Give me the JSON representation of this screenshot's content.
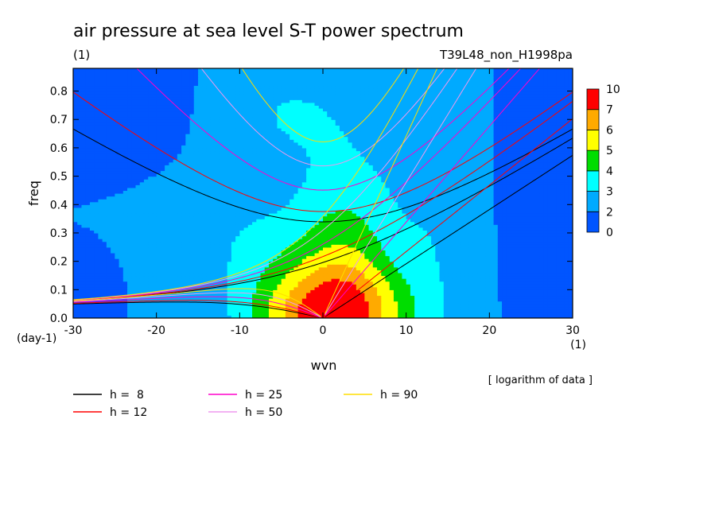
{
  "chart_data": {
    "type": "heatmap",
    "title": "air pressure at sea level S-T power spectrum",
    "title_unit": "(1)",
    "run_label": "T39L48_non_H1998pa",
    "xlabel": "wvn",
    "x_unit": "(1)",
    "ylabel": "freq",
    "y_unit": "(day-1)",
    "xlim": [
      -30,
      30
    ],
    "ylim": [
      0,
      0.88
    ],
    "x_ticks": [
      -30,
      -20,
      -10,
      0,
      10,
      20,
      30
    ],
    "y_ticks": [
      0.0,
      0.1,
      0.2,
      0.3,
      0.4,
      0.5,
      0.6,
      0.7,
      0.8
    ],
    "x_tick_labels": [
      "-30",
      "-20",
      "-10",
      "0",
      "10",
      "20",
      "30"
    ],
    "y_tick_labels": [
      "0.0",
      "0.1",
      "0.2",
      "0.3",
      "0.4",
      "0.5",
      "0.6",
      "0.7",
      "0.8"
    ],
    "note": "[ logarithm of data ]",
    "colorbar": {
      "levels": [
        0,
        2,
        3,
        4,
        5,
        6,
        7,
        10
      ],
      "level_labels": [
        "0",
        "2",
        "3",
        "4",
        "5",
        "6",
        "7",
        "10"
      ],
      "colors": [
        "#0055ff",
        "#00aaff",
        "#00ffff",
        "#00dd00",
        "#ffff00",
        "#ffaa00",
        "#ff0000"
      ]
    },
    "field": {
      "background_level": 2,
      "features": [
        {
          "x": 1,
          "y": 0.0,
          "sx": 9,
          "sy": 0.2,
          "amp": 5.6
        },
        {
          "x": 3,
          "y": 0.3,
          "sx": 6,
          "sy": 0.32,
          "amp": 1.8
        },
        {
          "x": -8,
          "y": 0.28,
          "sx": 9,
          "sy": 0.2,
          "amp": 0.9
        },
        {
          "x": 14,
          "y": 0.45,
          "sx": 5,
          "sy": 0.45,
          "amp": 0.9
        },
        {
          "x": -4,
          "y": 0.72,
          "sx": 8,
          "sy": 0.18,
          "amp": 1.0
        },
        {
          "x": -24,
          "y": 0.78,
          "sx": 6,
          "sy": 0.17,
          "amp": -0.9
        },
        {
          "x": 26,
          "y": 0.5,
          "sx": 4,
          "sy": 0.45,
          "amp": -0.9
        },
        {
          "x": -29,
          "y": 0.1,
          "sx": 3,
          "sy": 0.1,
          "amp": -0.6
        }
      ]
    },
    "dispersion_curves": [
      {
        "h": 8,
        "color": "#000000",
        "label": "h =  8"
      },
      {
        "h": 12,
        "color": "#ff0000",
        "label": "h = 12"
      },
      {
        "h": 25,
        "color": "#ff00cc",
        "label": "h = 25"
      },
      {
        "h": 50,
        "color": "#ee99ee",
        "label": "h = 50"
      },
      {
        "h": 90,
        "color": "#ffdd00",
        "label": "h = 90"
      }
    ]
  }
}
